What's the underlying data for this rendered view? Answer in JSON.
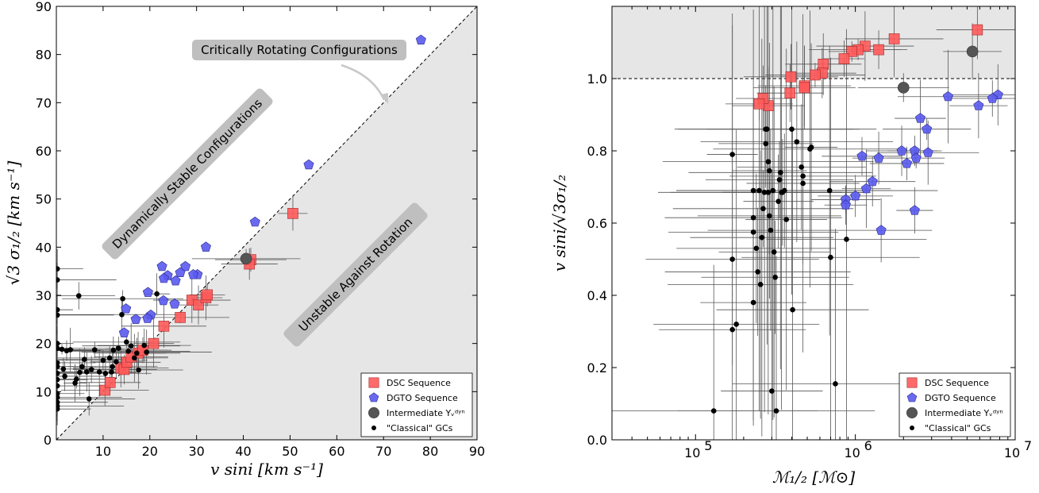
{
  "chart_data": [
    {
      "type": "scatter",
      "xlabel": "v sini [km s⁻¹]",
      "ylabel": "√3 σ₁/₂ [km s⁻¹]",
      "xlim": [
        0,
        90
      ],
      "ylim": [
        0,
        90
      ],
      "xticks": [
        "10",
        "20",
        "30",
        "40",
        "50",
        "60",
        "70",
        "80",
        "90"
      ],
      "yticks": [
        "0",
        "10",
        "20",
        "30",
        "40",
        "50",
        "60",
        "70",
        "80",
        "90"
      ],
      "grid": false,
      "legend_position": "lower-right",
      "annotations": {
        "critical": "Critically Rotating Configurations",
        "stable": "Dynamically Stable Configurations",
        "unstable": "Unstable Against Rotation"
      },
      "shaded_region": "below y = x",
      "reference_line": "y = x (dashed)",
      "series": [
        {
          "name": "DSC Sequence",
          "color": "#ff5a5a",
          "marker": "square",
          "points": [
            [
              10.4,
              10.3
            ],
            [
              11.5,
              11.9
            ],
            [
              13.8,
              14.9
            ],
            [
              14.5,
              14.6
            ],
            [
              15.1,
              16.1
            ],
            [
              16.0,
              17.2
            ],
            [
              17.5,
              18.0
            ],
            [
              18.5,
              18.6
            ],
            [
              20.8,
              20.0
            ],
            [
              23.0,
              23.6
            ],
            [
              26.5,
              25.4
            ],
            [
              29.0,
              29.0
            ],
            [
              30.4,
              28.0
            ],
            [
              32.0,
              29.5
            ],
            [
              32.3,
              30.1
            ],
            [
              41.6,
              37.4
            ],
            [
              41.3,
              36.5
            ],
            [
              50.6,
              47.0
            ]
          ]
        },
        {
          "name": "DGTO Sequence",
          "color": "#5a5af0",
          "marker": "pentagon",
          "points": [
            [
              78.0,
              83.0
            ],
            [
              54.0,
              57.1
            ],
            [
              42.5,
              45.2
            ],
            [
              32.0,
              40.0
            ],
            [
              22.6,
              36.0
            ],
            [
              27.6,
              36.0
            ],
            [
              30.2,
              34.3
            ],
            [
              26.5,
              34.7
            ],
            [
              23.8,
              34.1
            ],
            [
              23.0,
              33.5
            ],
            [
              25.5,
              33.0
            ],
            [
              29.3,
              34.3
            ],
            [
              22.9,
              28.9
            ],
            [
              19.6,
              30.6
            ],
            [
              25.3,
              28.2
            ],
            [
              14.9,
              27.2
            ],
            [
              20.2,
              25.9
            ],
            [
              19.5,
              25.2
            ],
            [
              17.0,
              25.0
            ],
            [
              14.5,
              22.2
            ]
          ]
        },
        {
          "name": "Intermediate Υᵥᵈʸⁿ",
          "color": "#555555",
          "marker": "circle",
          "points": [
            [
              40.6,
              37.6
            ]
          ]
        },
        {
          "name": "\"Classical\" GCs",
          "color": "#000000",
          "marker": "dot",
          "points": [
            [
              0.2,
              35.5
            ],
            [
              0.2,
              33.2
            ],
            [
              0.2,
              27.0
            ],
            [
              0.2,
              25.9
            ],
            [
              0.2,
              20.0
            ],
            [
              0.2,
              19.0
            ],
            [
              0.2,
              16.0
            ],
            [
              0.2,
              15.2
            ],
            [
              0.2,
              13.8
            ],
            [
              0.2,
              12.5
            ],
            [
              0.2,
              11.2
            ],
            [
              0.2,
              9.6
            ],
            [
              0.2,
              8.8
            ],
            [
              0.2,
              7.8
            ],
            [
              0.2,
              7.0
            ],
            [
              0.2,
              6.4
            ],
            [
              4.8,
              29.9
            ],
            [
              4.0,
              11.8
            ],
            [
              4.3,
              12.6
            ],
            [
              5.0,
              14.0
            ],
            [
              5.5,
              15.2
            ],
            [
              6.0,
              16.7
            ],
            [
              6.5,
              14.1
            ],
            [
              7.0,
              8.5
            ],
            [
              7.5,
              14.6
            ],
            [
              8.2,
              18.7
            ],
            [
              9.2,
              14.1
            ],
            [
              10.5,
              13.8
            ],
            [
              11.4,
              17.0
            ],
            [
              12.2,
              18.6
            ],
            [
              12.8,
              16.2
            ],
            [
              13.3,
              19.0
            ],
            [
              14.2,
              29.3
            ],
            [
              14.0,
              26.0
            ],
            [
              15.0,
              20.3
            ],
            [
              16.0,
              19.5
            ],
            [
              17.2,
              18.0
            ],
            [
              18.8,
              19.6
            ],
            [
              19.3,
              18.2
            ],
            [
              21.5,
              30.3
            ],
            [
              15.4,
              18.4
            ],
            [
              16.7,
              17.0
            ],
            [
              17.6,
              14.5
            ],
            [
              12.0,
              15.2
            ],
            [
              10.0,
              16.5
            ],
            [
              11.8,
              14.1
            ],
            [
              3.0,
              18.7
            ],
            [
              2.2,
              18.5
            ],
            [
              1.2,
              18.8
            ],
            [
              1.8,
              13.2
            ],
            [
              1.5,
              14.7
            ]
          ]
        }
      ]
    },
    {
      "type": "scatter",
      "xlabel": "ℳ₁/₂ [ℳ⊙]",
      "ylabel": "v sini/√3σ₁/₂",
      "x_scale": "log",
      "xlim": [
        30000,
        10000000
      ],
      "ylim": [
        0,
        1.2
      ],
      "xticks": [
        {
          "base": "10",
          "exp": "5",
          "value": 100000
        },
        {
          "base": "10",
          "exp": "6",
          "value": 1000000
        },
        {
          "base": "10",
          "exp": "7",
          "value": 10000000
        }
      ],
      "yticks": [
        "0.0",
        "0.2",
        "0.4",
        "0.6",
        "0.8",
        "1.0"
      ],
      "grid": false,
      "legend_position": "lower-right",
      "shaded_region": "above y = 1.0",
      "reference_line": "y = 1.0 (dashed)",
      "series": [
        {
          "name": "DSC Sequence",
          "color": "#ff5a5a",
          "marker": "square",
          "points": [
            [
              5800000,
              1.135
            ],
            [
              1750000,
              1.11
            ],
            [
              1400000,
              1.08
            ],
            [
              1150000,
              1.09
            ],
            [
              1040000,
              1.08
            ],
            [
              950000,
              1.075
            ],
            [
              850000,
              1.055
            ],
            [
              630000,
              1.04
            ],
            [
              620000,
              1.015
            ],
            [
              560000,
              1.01
            ],
            [
              480000,
              0.98
            ],
            [
              480000,
              0.975
            ],
            [
              395000,
              1.005
            ],
            [
              390000,
              0.96
            ],
            [
              285000,
              0.925
            ],
            [
              265000,
              0.945
            ],
            [
              250000,
              0.93
            ]
          ]
        },
        {
          "name": "DGTO Sequence",
          "color": "#5a5af0",
          "marker": "pentagon",
          "points": [
            [
              7800000,
              0.955
            ],
            [
              7200000,
              0.945
            ],
            [
              5900000,
              0.925
            ],
            [
              3800000,
              0.95
            ],
            [
              2800000,
              0.86
            ],
            [
              2850000,
              0.795
            ],
            [
              2550000,
              0.89
            ],
            [
              2350000,
              0.8
            ],
            [
              2400000,
              0.78
            ],
            [
              2100000,
              0.765
            ],
            [
              1950000,
              0.8
            ],
            [
              2350000,
              0.635
            ],
            [
              1450000,
              0.58
            ],
            [
              1400000,
              0.78
            ],
            [
              1280000,
              0.715
            ],
            [
              1170000,
              0.695
            ],
            [
              1100000,
              0.785
            ],
            [
              1000000,
              0.675
            ],
            [
              870000,
              0.665
            ],
            [
              870000,
              0.65
            ]
          ]
        },
        {
          "name": "Intermediate Υᵥᵈʸⁿ",
          "color": "#555555",
          "marker": "circle",
          "points": [
            [
              5400000,
              1.075
            ],
            [
              2000000,
              0.975
            ]
          ]
        },
        {
          "name": "\"Classical\" GCs",
          "color": "#000000",
          "marker": "dot",
          "points": [
            [
              170000,
              0.79
            ],
            [
              170000,
              0.5
            ],
            [
              170000,
              0.305
            ],
            [
              180000,
              0.32
            ],
            [
              130000,
              0.08
            ],
            [
              230000,
              0.69
            ],
            [
              230000,
              0.615
            ],
            [
              230000,
              0.575
            ],
            [
              230000,
              0.38
            ],
            [
              240000,
              0.53
            ],
            [
              245000,
              0.465
            ],
            [
              250000,
              0.69
            ],
            [
              255000,
              0.43
            ],
            [
              260000,
              0.56
            ],
            [
              265000,
              0.64
            ],
            [
              270000,
              0.685
            ],
            [
              275000,
              0.86
            ],
            [
              275000,
              0.82
            ],
            [
              280000,
              0.86
            ],
            [
              285000,
              0.77
            ],
            [
              285000,
              0.685
            ],
            [
              290000,
              0.745
            ],
            [
              290000,
              0.62
            ],
            [
              295000,
              0.58
            ],
            [
              300000,
              0.135
            ],
            [
              305000,
              0.69
            ],
            [
              310000,
              0.52
            ],
            [
              315000,
              0.45
            ],
            [
              320000,
              0.08
            ],
            [
              330000,
              0.66
            ],
            [
              335000,
              0.72
            ],
            [
              340000,
              0.74
            ],
            [
              345000,
              0.685
            ],
            [
              350000,
              0.685
            ],
            [
              360000,
              0.69
            ],
            [
              370000,
              0.61
            ],
            [
              400000,
              0.86
            ],
            [
              405000,
              0.36
            ],
            [
              430000,
              0.825
            ],
            [
              460000,
              0.755
            ],
            [
              470000,
              0.73
            ],
            [
              470000,
              0.71
            ],
            [
              520000,
              0.805
            ],
            [
              530000,
              0.81
            ],
            [
              690000,
              0.69
            ],
            [
              700000,
              0.505
            ],
            [
              750000,
              0.155
            ],
            [
              880000,
              0.555
            ]
          ]
        }
      ]
    }
  ]
}
